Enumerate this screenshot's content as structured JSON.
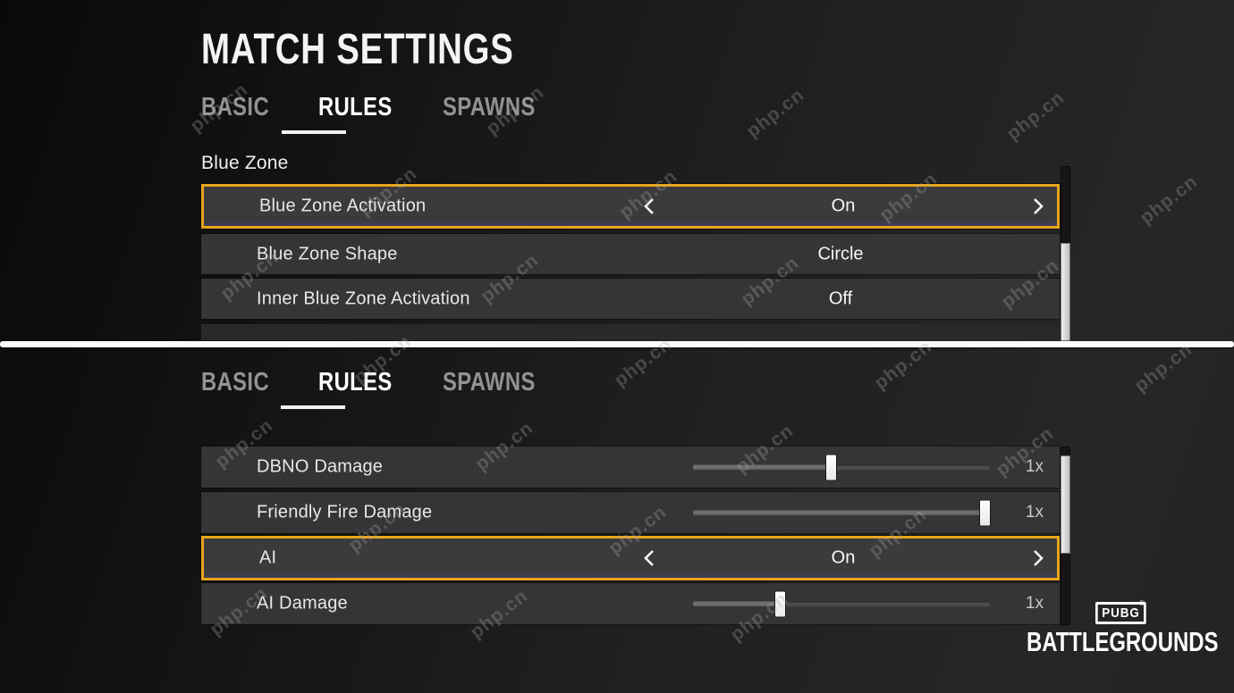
{
  "app": {
    "title": "MATCH SETTINGS"
  },
  "watermark": {
    "text": "php.cn"
  },
  "icons": {
    "chevron_left": "chevron-left",
    "chevron_right": "chevron-right"
  },
  "colors": {
    "highlight_border": "#e8a51b",
    "row_background": "#353535",
    "tab_active": "#ffffff",
    "tab_inactive": "#929292",
    "separator": "#fbfbfb"
  },
  "top_panel": {
    "tabs": [
      {
        "label": "BASIC"
      },
      {
        "label": "RULES"
      },
      {
        "label": "SPAWNS"
      }
    ],
    "active_tab": "RULES",
    "section_label": "Blue Zone",
    "rows": [
      {
        "label": "Blue Zone Activation",
        "value": "On",
        "control": "stepper",
        "highlighted": true
      },
      {
        "label": "Blue Zone Shape",
        "value": "Circle",
        "control": "static",
        "highlighted": false
      },
      {
        "label": "Inner Blue Zone Activation",
        "value": "Off",
        "control": "static",
        "highlighted": false
      }
    ]
  },
  "bottom_panel": {
    "tabs": [
      {
        "label": "BASIC"
      },
      {
        "label": "RULES"
      },
      {
        "label": "SPAWNS"
      }
    ],
    "active_tab": "RULES",
    "rows": [
      {
        "label": "DBNO Damage",
        "value": "1x",
        "control": "slider",
        "percent": 46,
        "highlighted": false
      },
      {
        "label": "Friendly Fire Damage",
        "value": "1x",
        "control": "slider",
        "percent": 98,
        "highlighted": false
      },
      {
        "label": "AI",
        "value": "On",
        "control": "stepper",
        "highlighted": true
      },
      {
        "label": "AI Damage",
        "value": "1x",
        "control": "slider",
        "percent": 29,
        "highlighted": false
      }
    ]
  },
  "logo": {
    "badge": "PUBG",
    "registered": "®",
    "wordmark": "BATTLEGROUNDS"
  }
}
